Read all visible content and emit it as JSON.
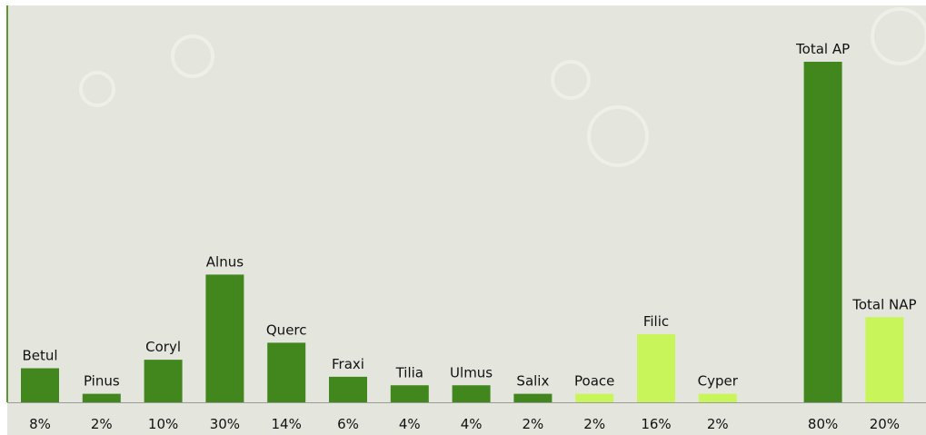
{
  "chart_data": {
    "type": "bar",
    "categories": [
      "Betul",
      "Pinus",
      "Coryl",
      "Alnus",
      "Querc",
      "Fraxi",
      "Tilia",
      "Ulmus",
      "Salix",
      "Poace",
      "Filic",
      "Cyper",
      "Total AP",
      "Total NAP"
    ],
    "values": [
      8,
      2,
      10,
      30,
      14,
      6,
      4,
      4,
      2,
      2,
      16,
      2,
      80,
      20
    ],
    "value_labels": [
      "8%",
      "2%",
      "10%",
      "30%",
      "14%",
      "6%",
      "4%",
      "4%",
      "2%",
      "2%",
      "16%",
      "2%",
      "80%",
      "20%"
    ],
    "colors": [
      "#42861e",
      "#42861e",
      "#42861e",
      "#42861e",
      "#42861e",
      "#42861e",
      "#42861e",
      "#42861e",
      "#42861e",
      "#c8f55a",
      "#c8f55a",
      "#c8f55a",
      "#42861e",
      "#c8f55a"
    ]
  }
}
